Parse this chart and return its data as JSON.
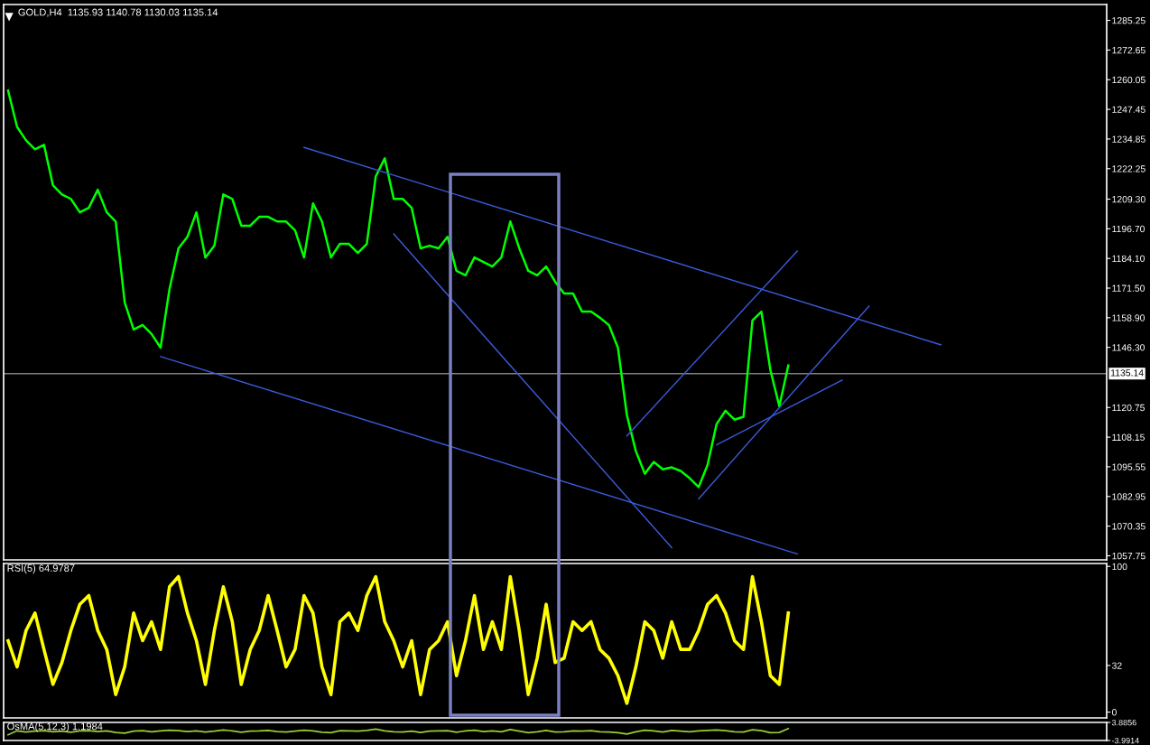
{
  "chart_data": [
    {
      "type": "line",
      "title": "GOLD,H4  1135.93 1140.78 1130.03 1135.14",
      "categories": [
        null,
        null,
        null,
        null,
        null,
        null,
        null,
        null,
        null,
        null,
        null,
        null,
        null,
        null,
        null,
        null,
        null,
        null,
        null,
        null,
        null,
        null,
        null,
        null,
        null,
        null,
        null,
        null,
        null,
        null,
        null,
        null,
        null,
        null,
        null,
        null,
        null,
        null,
        null,
        null,
        null,
        null,
        null,
        null,
        null,
        null,
        null,
        null,
        null,
        null,
        null,
        null,
        null,
        null,
        null,
        null,
        null,
        null,
        null,
        null,
        null,
        null,
        null,
        null,
        null,
        null,
        null,
        null,
        null,
        null,
        null,
        null,
        null,
        null,
        null,
        null,
        null,
        null,
        null,
        null,
        null,
        null,
        null,
        null,
        null,
        null,
        null,
        null,
        null,
        null,
        null,
        null,
        null,
        null,
        null,
        null,
        null,
        null,
        null,
        null,
        null,
        null,
        null,
        null,
        null,
        null,
        null,
        null,
        null,
        null,
        null,
        null,
        null,
        null,
        null,
        null,
        null,
        null,
        null,
        null,
        null,
        null,
        null
      ],
      "series": [
        {
          "color": "#00ff00",
          "values": [
            1255.4,
            1240.0,
            1234.3,
            1230.5,
            1232.4,
            1215.2,
            1211.3,
            1209.4,
            1203.7,
            1205.6,
            1213.3,
            1203.7,
            1199.8,
            1165.4,
            1153.9,
            1155.8,
            1152.0,
            1146.2,
            1171.1,
            1188.4,
            1193.3,
            1203.7,
            1184.5,
            1189.5,
            1211.3,
            1209.4,
            1198.0,
            1198.0,
            1201.8,
            1201.8,
            1199.8,
            1199.8,
            1196.0,
            1184.5,
            1207.5,
            1199.8,
            1184.5,
            1190.3,
            1190.3,
            1186.4,
            1190.3,
            1219.0,
            1226.6,
            1209.4,
            1209.4,
            1205.6,
            1188.4,
            1189.5,
            1188.4,
            1193.3,
            1178.8,
            1176.9,
            1184.5,
            1182.6,
            1180.7,
            1184.5,
            1199.8,
            1188.4,
            1178.8,
            1176.9,
            1180.7,
            1174.2,
            1169.2,
            1169.2,
            1161.5,
            1161.5,
            1158.9,
            1155.8,
            1146.2,
            1117.5,
            1102.2,
            1092.6,
            1097.6,
            1094.5,
            1095.3,
            1093.8,
            1090.7,
            1086.9,
            1096.4,
            1113.7,
            1119.4,
            1115.6,
            1116.8,
            1157.7,
            1161.5,
            1136.7,
            1121.3,
            1138.6,
            null,
            null,
            null,
            null,
            null,
            null,
            null,
            null,
            null,
            null,
            null,
            null,
            null,
            null,
            null,
            null,
            null,
            null,
            null,
            null,
            null,
            null,
            null,
            null,
            null,
            null,
            null,
            null,
            null,
            null,
            null,
            null,
            null,
            null,
            null
          ]
        },
        {
          "type": "line",
          "color": "#3b5bdb",
          "values": [
            null,
            null,
            null,
            null,
            null,
            null,
            null,
            null,
            null,
            null,
            null,
            null,
            null,
            null,
            null,
            null,
            null,
            null,
            null,
            null,
            null,
            null,
            null,
            null,
            null,
            null,
            null,
            null,
            null,
            null,
            null,
            null,
            null,
            1231.3,
            null,
            null,
            null,
            null,
            null,
            null,
            null,
            null,
            null,
            null,
            null,
            null,
            null,
            null,
            null,
            null,
            null,
            null,
            null,
            null,
            null,
            null,
            null,
            null,
            null,
            null,
            null,
            null,
            null,
            null,
            null,
            null,
            null,
            null,
            null,
            null,
            null,
            null,
            null,
            null,
            null,
            null,
            null,
            null,
            null,
            null,
            null,
            null,
            null,
            null,
            null,
            null,
            null,
            null,
            null,
            null,
            null,
            null,
            null,
            null,
            null,
            null,
            null,
            null,
            null,
            null,
            null,
            null,
            null,
            null,
            1147.4,
            null,
            null,
            null,
            null,
            null,
            null,
            null,
            null,
            null,
            null,
            null,
            null,
            null,
            null,
            null,
            null,
            null,
            null
          ]
        },
        {
          "type": "line",
          "color": "#3b5bdb",
          "values": [
            null,
            null,
            null,
            null,
            null,
            null,
            null,
            null,
            null,
            null,
            null,
            null,
            null,
            null,
            null,
            null,
            null,
            1142.4,
            null,
            null,
            null,
            null,
            null,
            null,
            null,
            null,
            null,
            null,
            null,
            null,
            null,
            null,
            null,
            null,
            null,
            null,
            null,
            null,
            null,
            null,
            null,
            null,
            null,
            null,
            null,
            null,
            null,
            null,
            null,
            null,
            null,
            null,
            null,
            null,
            null,
            null,
            null,
            null,
            null,
            null,
            null,
            null,
            null,
            null,
            null,
            null,
            null,
            null,
            null,
            null,
            null,
            null,
            null,
            null,
            null,
            null,
            null,
            null,
            null,
            null,
            null,
            null,
            null,
            null,
            null,
            null,
            null,
            null,
            1058.5,
            null,
            null,
            null,
            null,
            null,
            null,
            null,
            null,
            null,
            null,
            null,
            null,
            null,
            null,
            null,
            null,
            null,
            null,
            null,
            null,
            null,
            null,
            null,
            null,
            null,
            null,
            null,
            null,
            null,
            null,
            null,
            null,
            null,
            null
          ]
        },
        {
          "type": "line",
          "color": "#3b5bdb",
          "values": [
            null,
            null,
            null,
            null,
            null,
            null,
            null,
            null,
            null,
            null,
            null,
            null,
            null,
            null,
            null,
            null,
            null,
            null,
            null,
            null,
            null,
            null,
            null,
            null,
            null,
            null,
            null,
            null,
            null,
            null,
            null,
            null,
            null,
            null,
            null,
            null,
            null,
            null,
            null,
            null,
            null,
            null,
            null,
            1194.5,
            null,
            null,
            null,
            null,
            null,
            null,
            null,
            null,
            null,
            null,
            null,
            null,
            null,
            null,
            null,
            null,
            null,
            null,
            null,
            null,
            null,
            null,
            null,
            null,
            null,
            null,
            null,
            null,
            null,
            null,
            1061.2,
            null,
            null,
            null,
            null,
            null,
            null,
            null,
            null,
            null,
            null,
            null,
            null,
            null,
            null,
            null,
            null,
            null,
            null,
            null,
            null,
            null,
            null,
            null,
            null,
            null,
            null,
            null,
            null,
            null,
            null,
            null,
            null,
            null,
            null,
            null,
            null,
            null,
            null,
            null,
            null,
            null,
            null,
            null,
            null,
            null,
            null,
            null,
            null
          ]
        },
        {
          "type": "line",
          "color": "#3b5bdb",
          "values": [
            null,
            null,
            null,
            null,
            null,
            null,
            null,
            null,
            null,
            null,
            null,
            null,
            null,
            null,
            null,
            null,
            null,
            null,
            null,
            null,
            null,
            null,
            null,
            null,
            null,
            null,
            null,
            null,
            null,
            null,
            null,
            null,
            null,
            null,
            null,
            null,
            null,
            null,
            null,
            null,
            null,
            null,
            null,
            null,
            null,
            null,
            null,
            null,
            null,
            null,
            null,
            null,
            null,
            null,
            null,
            null,
            null,
            null,
            null,
            null,
            null,
            null,
            null,
            null,
            null,
            null,
            null,
            null,
            null,
            1108.7,
            null,
            null,
            null,
            null,
            null,
            null,
            null,
            null,
            null,
            null,
            null,
            null,
            null,
            null,
            null,
            null,
            null,
            null,
            1187.2,
            null,
            null,
            null,
            null,
            null,
            null,
            null,
            null,
            null,
            null,
            null,
            null,
            null,
            null,
            null,
            null,
            null,
            null,
            null,
            null,
            null,
            null,
            null,
            null,
            null,
            null,
            null,
            null,
            null,
            null,
            null,
            null,
            null,
            null
          ]
        },
        {
          "type": "line",
          "color": "#3b5bdb",
          "values": [
            null,
            null,
            null,
            null,
            null,
            null,
            null,
            null,
            null,
            null,
            null,
            null,
            null,
            null,
            null,
            null,
            null,
            null,
            null,
            null,
            null,
            null,
            null,
            null,
            null,
            null,
            null,
            null,
            null,
            null,
            null,
            null,
            null,
            null,
            null,
            null,
            null,
            null,
            null,
            null,
            null,
            null,
            null,
            null,
            null,
            null,
            null,
            null,
            null,
            null,
            null,
            null,
            null,
            null,
            null,
            null,
            null,
            null,
            null,
            null,
            null,
            null,
            null,
            null,
            null,
            null,
            null,
            null,
            null,
            null,
            null,
            null,
            null,
            null,
            null,
            null,
            null,
            1081.9,
            null,
            null,
            null,
            null,
            null,
            null,
            null,
            null,
            null,
            null,
            null,
            null,
            null,
            null,
            null,
            null,
            null,
            null,
            1163.8,
            null,
            null,
            null,
            null,
            null,
            null,
            null,
            null,
            null,
            null,
            null,
            null,
            null,
            null,
            null,
            null,
            null,
            null,
            null,
            null,
            null,
            null,
            null,
            null,
            null,
            null
          ]
        },
        {
          "type": "line",
          "color": "#3b5bdb",
          "values": [
            null,
            null,
            null,
            null,
            null,
            null,
            null,
            null,
            null,
            null,
            null,
            null,
            null,
            null,
            null,
            null,
            null,
            null,
            null,
            null,
            null,
            null,
            null,
            null,
            null,
            null,
            null,
            null,
            null,
            null,
            null,
            null,
            null,
            null,
            null,
            null,
            null,
            null,
            null,
            null,
            null,
            null,
            null,
            null,
            null,
            null,
            null,
            null,
            null,
            null,
            null,
            null,
            null,
            null,
            null,
            null,
            null,
            null,
            null,
            null,
            null,
            null,
            null,
            null,
            null,
            null,
            null,
            null,
            null,
            null,
            null,
            null,
            null,
            null,
            null,
            null,
            null,
            null,
            null,
            1104.9,
            null,
            null,
            null,
            null,
            null,
            null,
            null,
            null,
            null,
            null,
            null,
            null,
            null,
            1132.4,
            null,
            null,
            null,
            null,
            null,
            null,
            null,
            null,
            null,
            null,
            null,
            null,
            null,
            null,
            null,
            null,
            null,
            null,
            null,
            null,
            null,
            null,
            null,
            null,
            null,
            null,
            null,
            null,
            null
          ]
        }
      ],
      "ylim": [
        1056,
        1292
      ],
      "yticks": [
        {
          "value": 1285.25,
          "label": "1285.25"
        },
        {
          "value": 1272.65,
          "label": "1272.65"
        },
        {
          "value": 1260.05,
          "label": "1260.05"
        },
        {
          "value": 1247.45,
          "label": "1247.45"
        },
        {
          "value": 1234.85,
          "label": "1234.85"
        },
        {
          "value": 1222.25,
          "label": "1222.25"
        },
        {
          "value": 1209.3,
          "label": "1209.30"
        },
        {
          "value": 1196.7,
          "label": "1196.70"
        },
        {
          "value": 1184.1,
          "label": "1184.10"
        },
        {
          "value": 1171.5,
          "label": "1171.50"
        },
        {
          "value": 1158.9,
          "label": "1158.90"
        },
        {
          "value": 1146.3,
          "label": "1146.30"
        },
        {
          "value": 1120.75,
          "label": "1120.75"
        },
        {
          "value": 1108.15,
          "label": "1108.15"
        },
        {
          "value": 1095.55,
          "label": "1095.55"
        },
        {
          "value": 1082.95,
          "label": "1082.95"
        },
        {
          "value": 1070.35,
          "label": "1070.35"
        },
        {
          "value": 1057.75,
          "label": "1057.75"
        }
      ],
      "ref_lines": [
        {
          "axis": "y",
          "value": 1135.14,
          "label": "1135.14",
          "color": "#808080"
        }
      ],
      "tick_labels": "y",
      "grid": false,
      "legend": false,
      "marker": "none",
      "line_style": "solid"
    },
    {
      "type": "line",
      "title": "RSI(5) 64.9787",
      "categories": [
        null,
        null,
        null,
        null,
        null,
        null,
        null,
        null,
        null,
        null,
        null,
        null,
        null,
        null,
        null,
        null,
        null,
        null,
        null,
        null,
        null,
        null,
        null,
        null,
        null,
        null,
        null,
        null,
        null,
        null,
        null,
        null,
        null,
        null,
        null,
        null,
        null,
        null,
        null,
        null,
        null,
        null,
        null,
        null,
        null,
        null,
        null,
        null,
        null,
        null,
        null,
        null,
        null,
        null,
        null,
        null,
        null,
        null,
        null,
        null,
        null,
        null,
        null,
        null,
        null,
        null,
        null,
        null,
        null,
        null,
        null,
        null,
        null,
        null,
        null,
        null,
        null,
        null,
        null,
        null,
        null,
        null,
        null,
        null,
        null,
        null,
        null,
        null,
        null,
        null,
        null,
        null,
        null,
        null,
        null,
        null,
        null,
        null,
        null,
        null,
        null,
        null,
        null,
        null,
        null,
        null,
        null,
        null,
        null,
        null,
        null,
        null,
        null,
        null,
        null,
        null,
        null,
        null,
        null,
        null,
        null,
        null,
        null
      ],
      "series": [
        {
          "color": "#ffff00",
          "values": [
            49,
            31,
            56,
            68,
            43,
            19,
            34,
            56,
            74,
            80,
            56,
            43,
            12,
            31,
            68,
            49,
            62,
            43,
            86,
            93,
            68,
            49,
            19,
            56,
            86,
            62,
            19,
            43,
            56,
            80,
            56,
            31,
            43,
            80,
            68,
            31,
            12,
            62,
            68,
            56,
            80,
            93,
            62,
            49,
            31,
            49,
            12,
            43,
            49,
            62,
            25,
            49,
            80,
            43,
            62,
            43,
            93,
            56,
            12,
            37,
            74,
            34,
            37,
            62,
            56,
            62,
            43,
            37,
            25,
            6,
            31,
            62,
            56,
            37,
            62,
            43,
            43,
            56,
            74,
            80,
            68,
            49,
            43,
            93,
            62,
            25,
            19,
            68,
            null,
            null,
            null,
            null,
            null,
            null,
            null,
            null,
            null,
            null,
            null,
            null,
            null,
            null,
            null,
            null,
            null,
            null,
            null,
            null,
            null,
            null,
            null,
            null,
            null,
            null,
            null,
            null,
            null,
            null,
            null,
            null,
            null,
            null,
            null
          ]
        }
      ],
      "ylim": [
        -4,
        102
      ],
      "yticks": [
        0,
        32,
        100
      ],
      "tick_labels": "y",
      "grid": false,
      "legend": false,
      "marker": "none",
      "line_style": "solid"
    },
    {
      "type": "line",
      "title": "OsMA(5,12,3) 1.1984",
      "categories": [
        null,
        null,
        null,
        null,
        null,
        null,
        null,
        null,
        null,
        null,
        null,
        null,
        null,
        null,
        null,
        null,
        null,
        null,
        null,
        null,
        null,
        null,
        null,
        null,
        null,
        null,
        null,
        null,
        null,
        null,
        null,
        null,
        null,
        null,
        null,
        null,
        null,
        null,
        null,
        null,
        null,
        null,
        null,
        null,
        null,
        null,
        null,
        null,
        null,
        null,
        null,
        null,
        null,
        null,
        null,
        null,
        null,
        null,
        null,
        null,
        null,
        null,
        null,
        null,
        null,
        null,
        null,
        null,
        null,
        null,
        null,
        null,
        null,
        null,
        null,
        null,
        null,
        null,
        null,
        null,
        null,
        null,
        null,
        null,
        null,
        null,
        null,
        null,
        null,
        null,
        null,
        null,
        null,
        null,
        null,
        null,
        null,
        null,
        null,
        null,
        null,
        null,
        null,
        null,
        null,
        null,
        null,
        null,
        null,
        null,
        null,
        null,
        null,
        null,
        null,
        null,
        null,
        null,
        null,
        null,
        null,
        null,
        null
      ],
      "series": [
        {
          "color": "#9acd32",
          "values": [
            -1.5,
            0.2,
            -0.3,
            0.1,
            0.3,
            -0.2,
            0.1,
            -0.4,
            0.2,
            0.3,
            -0.1,
            0.2,
            -0.5,
            -0.8,
            0.1,
            0.3,
            -0.2,
            0.2,
            0.5,
            0.3,
            -0.1,
            0.2,
            -0.3,
            0.1,
            0.6,
            0.2,
            -0.4,
            0.1,
            0.2,
            0.4,
            -0.1,
            -0.3,
            0.1,
            0.5,
            0.2,
            -0.4,
            -0.6,
            0.3,
            0.2,
            0.1,
            0.4,
            1.0,
            0.2,
            -0.2,
            -0.3,
            0.1,
            -0.5,
            0.1,
            0.2,
            0.3,
            -0.4,
            0.2,
            0.5,
            -0.1,
            0.2,
            -0.2,
            0.8,
            0.1,
            -0.6,
            -0.2,
            0.4,
            -0.3,
            -0.2,
            0.2,
            0.1,
            0.3,
            -0.2,
            -0.3,
            -0.6,
            -1.2,
            -0.2,
            0.5,
            0.2,
            -0.3,
            0.4,
            0.1,
            -0.2,
            0.2,
            0.4,
            0.6,
            0.3,
            -0.2,
            -0.3,
            0.7,
            0.3,
            -0.6,
            -0.5,
            1.2,
            null,
            null,
            null,
            null,
            null,
            null,
            null,
            null,
            null,
            null,
            null,
            null,
            null,
            null,
            null,
            null,
            null,
            null,
            null,
            null,
            null,
            null,
            null,
            null,
            null,
            null,
            null,
            null,
            null,
            null,
            null,
            null,
            null,
            null,
            null
          ]
        }
      ],
      "ylim": [
        -3.9914,
        3.8856
      ],
      "yticks": [
        {
          "value": 3.8856,
          "label": "3.8856"
        },
        {
          "value": -3.9914,
          "label": "-3.9914"
        }
      ],
      "tick_labels": "y",
      "grid": false,
      "legend": false,
      "marker": "none",
      "line_style": "solid"
    }
  ]
}
